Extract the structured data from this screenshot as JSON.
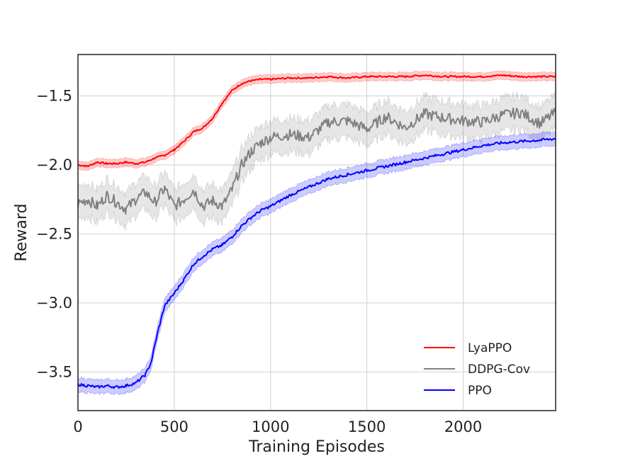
{
  "chart_data": {
    "type": "line",
    "title": "",
    "xlabel": "Training Episodes",
    "ylabel": "Reward",
    "xlim": [
      0,
      2480
    ],
    "ylim": [
      -3.78,
      -1.2
    ],
    "xticks": [
      0,
      500,
      1000,
      1500,
      2000
    ],
    "xtick_labels": [
      "0",
      "500",
      "1000",
      "1500",
      "2000"
    ],
    "yticks": [
      -1.5,
      -2.0,
      -2.5,
      -3.0,
      -3.5
    ],
    "ytick_labels": [
      "−1.5",
      "−2.0",
      "−2.5",
      "−3.0",
      "−3.5"
    ],
    "grid": true,
    "legend_position": "lower-right",
    "series": [
      {
        "name": "LyaPPO",
        "color": "#ff0000",
        "band": 0.03,
        "x": [
          0,
          50,
          100,
          150,
          200,
          250,
          300,
          350,
          400,
          450,
          500,
          550,
          600,
          650,
          700,
          750,
          800,
          850,
          900,
          950,
          1000,
          1100,
          1200,
          1300,
          1400,
          1500,
          1600,
          1700,
          1800,
          1900,
          2000,
          2100,
          2200,
          2300,
          2400,
          2480
        ],
        "y": [
          -2.0,
          -2.01,
          -1.98,
          -1.99,
          -1.99,
          -1.98,
          -1.99,
          -1.98,
          -1.95,
          -1.93,
          -1.89,
          -1.83,
          -1.76,
          -1.73,
          -1.66,
          -1.55,
          -1.46,
          -1.41,
          -1.39,
          -1.38,
          -1.38,
          -1.37,
          -1.37,
          -1.36,
          -1.37,
          -1.36,
          -1.36,
          -1.36,
          -1.35,
          -1.36,
          -1.36,
          -1.36,
          -1.35,
          -1.36,
          -1.36,
          -1.36
        ]
      },
      {
        "name": "DDPG-Cov",
        "color": "#808080",
        "band": 0.12,
        "x": [
          0,
          50,
          100,
          150,
          200,
          250,
          300,
          350,
          400,
          450,
          500,
          550,
          600,
          650,
          700,
          750,
          800,
          850,
          900,
          950,
          1000,
          1100,
          1200,
          1300,
          1400,
          1500,
          1600,
          1700,
          1800,
          1900,
          2000,
          2100,
          2200,
          2300,
          2400,
          2480
        ],
        "y": [
          -2.28,
          -2.25,
          -2.3,
          -2.22,
          -2.27,
          -2.32,
          -2.25,
          -2.2,
          -2.27,
          -2.17,
          -2.3,
          -2.25,
          -2.18,
          -2.3,
          -2.26,
          -2.3,
          -2.18,
          -2.0,
          -1.9,
          -1.84,
          -1.8,
          -1.78,
          -1.8,
          -1.69,
          -1.68,
          -1.74,
          -1.65,
          -1.73,
          -1.63,
          -1.66,
          -1.68,
          -1.69,
          -1.64,
          -1.62,
          -1.7,
          -1.62
        ]
      },
      {
        "name": "PPO",
        "color": "#0000ff",
        "band": 0.05,
        "x": [
          0,
          50,
          100,
          150,
          200,
          250,
          300,
          350,
          380,
          400,
          420,
          450,
          500,
          550,
          600,
          650,
          700,
          750,
          800,
          850,
          900,
          950,
          1000,
          1100,
          1200,
          1300,
          1400,
          1500,
          1600,
          1700,
          1800,
          1900,
          2000,
          2100,
          2200,
          2300,
          2400,
          2480
        ],
        "y": [
          -3.59,
          -3.6,
          -3.61,
          -3.6,
          -3.61,
          -3.6,
          -3.58,
          -3.52,
          -3.43,
          -3.3,
          -3.18,
          -3.02,
          -2.93,
          -2.83,
          -2.72,
          -2.66,
          -2.61,
          -2.58,
          -2.52,
          -2.44,
          -2.38,
          -2.33,
          -2.3,
          -2.22,
          -2.16,
          -2.1,
          -2.07,
          -2.04,
          -2.01,
          -1.98,
          -1.95,
          -1.92,
          -1.89,
          -1.86,
          -1.84,
          -1.83,
          -1.82,
          -1.81
        ]
      }
    ]
  }
}
